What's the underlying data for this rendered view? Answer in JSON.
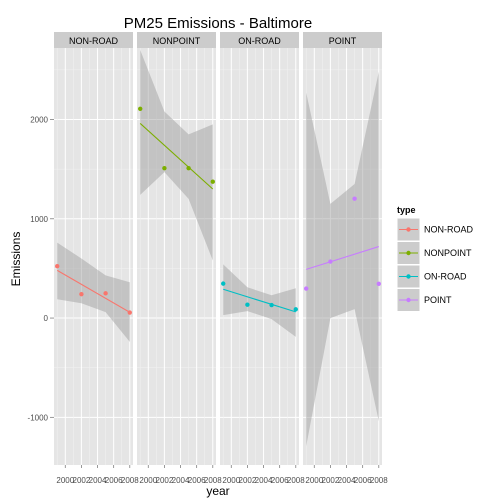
{
  "chart_data": {
    "type": "scatter",
    "title": "PM25 Emissions - Baltimore",
    "xlabel": "year",
    "ylabel": "Emissions",
    "ylim": [
      -1480,
      2720
    ],
    "yticks": [
      -1000,
      0,
      1000,
      2000
    ],
    "ytick_labels": [
      "-1000",
      "0",
      "1000",
      "2000"
    ],
    "xlim": [
      1998.6,
      2008.4
    ],
    "xticks": [
      2000,
      2002,
      2004,
      2006,
      2008
    ],
    "xtick_labels": [
      "2000",
      "2002",
      "2004",
      "2006",
      "2008"
    ],
    "grid": true,
    "legend": {
      "title": "type",
      "position": "right"
    },
    "series": [
      {
        "name": "NON-ROAD",
        "color": "#F8766D",
        "x": [
          1999,
          2002,
          2005,
          2008
        ],
        "values": [
          522.9,
          240.8,
          248.9,
          55.8
        ],
        "fit": {
          "y_start": 480,
          "y_end": 58
        },
        "band_upper": [
          760,
          600,
          430,
          360
        ],
        "band_lower": [
          190,
          150,
          60,
          -240
        ]
      },
      {
        "name": "NONPOINT",
        "color": "#7CAE00",
        "x": [
          1999,
          2002,
          2005,
          2008
        ],
        "values": [
          2107.6,
          1509.5,
          1509.5,
          1373.2
        ],
        "fit": {
          "y_start": 1960,
          "y_end": 1300
        },
        "band_upper": [
          2700,
          2080,
          1850,
          1950
        ],
        "band_lower": [
          1240,
          1470,
          1200,
          580
        ]
      },
      {
        "name": "ON-ROAD",
        "color": "#00BFC4",
        "x": [
          1999,
          2002,
          2005,
          2008
        ],
        "values": [
          346.8,
          134.3,
          130.4,
          88.3
        ],
        "fit": {
          "y_start": 290,
          "y_end": 62
        },
        "band_upper": [
          540,
          310,
          230,
          300
        ],
        "band_lower": [
          30,
          70,
          -10,
          -190
        ]
      },
      {
        "name": "POINT",
        "color": "#C77CFF",
        "x": [
          1999,
          2002,
          2005,
          2008
        ],
        "values": [
          296.8,
          569.3,
          1202.5,
          344.98
        ],
        "fit": {
          "y_start": 490,
          "y_end": 720
        },
        "band_upper": [
          2270,
          1150,
          1350,
          2480
        ],
        "band_lower": [
          -1290,
          0,
          90,
          -1040
        ]
      }
    ]
  }
}
